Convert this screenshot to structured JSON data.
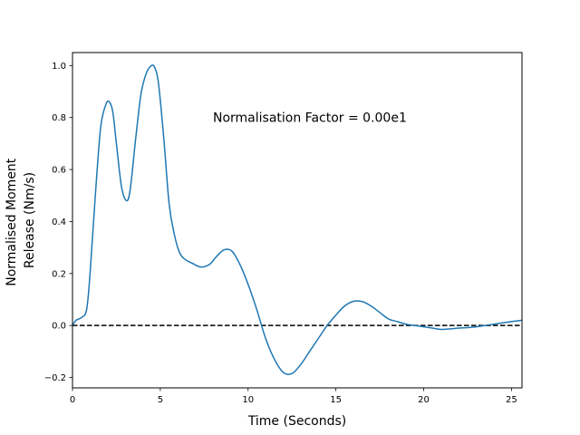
{
  "chart_data": {
    "type": "line",
    "xlabel": "Time (Seconds)",
    "ylabel_lines": [
      "Normalised Moment",
      "Release (Nm/s)"
    ],
    "xlim": [
      0,
      25.6
    ],
    "ylim": [
      -0.24,
      1.05
    ],
    "xticks": [
      0,
      5,
      10,
      15,
      20,
      25
    ],
    "yticks": [
      -0.2,
      0.0,
      0.2,
      0.4,
      0.6,
      0.8,
      1.0
    ],
    "xtick_labels": [
      "0",
      "5",
      "10",
      "15",
      "20",
      "25"
    ],
    "ytick_labels": [
      "−0.2",
      "0.0",
      "0.2",
      "0.4",
      "0.6",
      "0.8",
      "1.0"
    ],
    "grid": false,
    "annotation": {
      "text": "Normalisation Factor = 0.00e1",
      "x": 8.0,
      "y": 0.8
    },
    "reference_line": {
      "y": 0.0,
      "style": "dashed",
      "color": "#000000"
    },
    "series": [
      {
        "color": "#1f77b4",
        "x": [
          0,
          0.2,
          0.5,
          0.8,
          1.0,
          1.3,
          1.6,
          1.9,
          2.1,
          2.3,
          2.5,
          2.8,
          3.1,
          3.3,
          3.6,
          3.9,
          4.2,
          4.5,
          4.7,
          4.9,
          5.2,
          5.5,
          5.8,
          6.1,
          6.4,
          6.8,
          7.3,
          7.8,
          8.2,
          8.6,
          9.0,
          9.3,
          9.7,
          10.1,
          10.5,
          11.0,
          11.5,
          12.0,
          12.5,
          13.0,
          13.5,
          14.0,
          14.5,
          15.0,
          15.5,
          16.0,
          16.5,
          17.0,
          17.5,
          18.0,
          18.5,
          19.0,
          19.5,
          20.0,
          20.5,
          21.0,
          21.5,
          22.0,
          22.5,
          23.0,
          23.5,
          24.0,
          24.5,
          25.0,
          25.6
        ],
        "y": [
          0.0,
          0.02,
          0.03,
          0.06,
          0.2,
          0.5,
          0.76,
          0.85,
          0.86,
          0.82,
          0.7,
          0.53,
          0.48,
          0.53,
          0.72,
          0.89,
          0.97,
          1.0,
          0.99,
          0.93,
          0.72,
          0.47,
          0.35,
          0.28,
          0.255,
          0.24,
          0.225,
          0.235,
          0.265,
          0.29,
          0.29,
          0.265,
          0.21,
          0.14,
          0.06,
          -0.05,
          -0.13,
          -0.18,
          -0.185,
          -0.15,
          -0.1,
          -0.05,
          0.0,
          0.04,
          0.075,
          0.093,
          0.092,
          0.075,
          0.05,
          0.025,
          0.015,
          0.005,
          0.0,
          -0.005,
          -0.01,
          -0.015,
          -0.013,
          -0.01,
          -0.008,
          -0.005,
          0.0,
          0.005,
          0.01,
          0.015,
          0.02
        ]
      }
    ]
  }
}
